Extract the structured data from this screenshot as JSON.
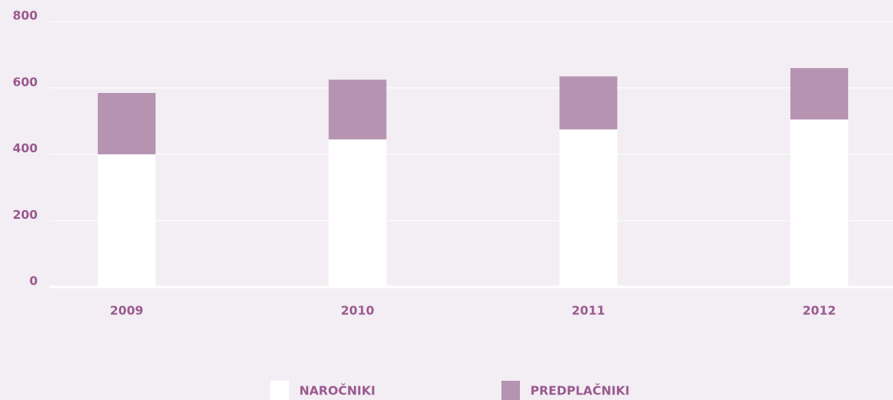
{
  "chart_data": {
    "type": "stacked_bar",
    "categories": [
      "2009",
      "2010",
      "2011",
      "2012"
    ],
    "series": [
      {
        "name": "NAROČNIKI",
        "color": "#ffffff",
        "values": [
          400,
          445,
          475,
          505
        ]
      },
      {
        "name": "PREDPLAČNIKI",
        "color": "#b593b1",
        "values": [
          185,
          180,
          160,
          155
        ]
      }
    ],
    "ylim": [
      0,
      800
    ],
    "yticks": [
      0,
      200,
      400,
      600,
      800
    ],
    "grid": true
  }
}
